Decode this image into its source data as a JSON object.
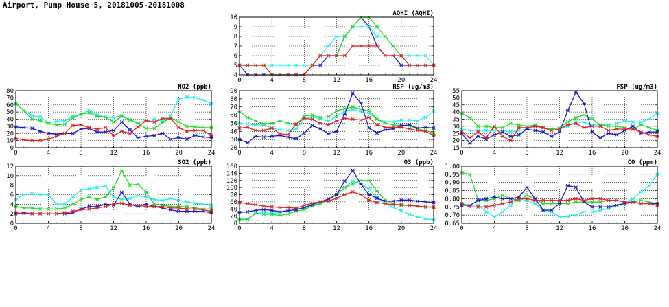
{
  "page": {
    "title": "Airport, Pump House 5, 20181005-20181008"
  },
  "colors": {
    "blue": "#1a1acc",
    "green": "#22dd22",
    "cyan": "#22eeee",
    "red": "#e52020"
  },
  "chart_data": [
    {
      "type": "line",
      "title": "AQHI (AQHI)",
      "xlim": [
        0,
        24
      ],
      "ylim": [
        4,
        10
      ],
      "xticks": [
        "0",
        "4",
        "8",
        "12",
        "16",
        "20",
        "24"
      ],
      "yticks": [
        "4",
        "5",
        "6",
        "7",
        "8",
        "9",
        "10"
      ],
      "grid": true,
      "x": [
        0,
        1,
        2,
        3,
        4,
        5,
        6,
        7,
        8,
        9,
        10,
        11,
        12,
        13,
        14,
        15,
        16,
        17,
        18,
        19,
        20,
        21,
        22,
        23,
        24
      ],
      "series": [
        {
          "color": "blue",
          "values": [
            5,
            4,
            4,
            4,
            4,
            4,
            4,
            4,
            4,
            5,
            5,
            6,
            6,
            8,
            9,
            10,
            9,
            7,
            6,
            6,
            5,
            5,
            5,
            5,
            5
          ]
        },
        {
          "color": "cyan",
          "values": [
            5,
            5,
            5,
            5,
            5,
            5,
            5,
            5,
            5,
            5,
            6,
            7,
            8,
            8,
            9,
            9,
            9,
            8,
            8,
            7,
            6,
            6,
            6,
            6,
            5
          ]
        },
        {
          "color": "green",
          "values": [
            5,
            5,
            5,
            5,
            4,
            4,
            4,
            4,
            4,
            5,
            6,
            6,
            6,
            8,
            9,
            10,
            10,
            9,
            8,
            7,
            6,
            5,
            5,
            5,
            5
          ]
        },
        {
          "color": "red",
          "values": [
            5,
            5,
            5,
            5,
            4,
            4,
            4,
            4,
            4,
            5,
            6,
            6,
            6,
            6,
            7,
            7,
            7,
            7,
            6,
            6,
            6,
            5,
            5,
            5,
            5
          ]
        }
      ]
    },
    {
      "type": "line",
      "title": "NO2 (ppb)",
      "xlim": [
        0,
        24
      ],
      "ylim": [
        0,
        80
      ],
      "xticks": [
        "0",
        "4",
        "8",
        "12",
        "16",
        "20",
        "24"
      ],
      "yticks": [
        "0",
        "10",
        "20",
        "30",
        "40",
        "50",
        "60",
        "70",
        "80"
      ],
      "grid": true,
      "x": [
        0,
        1,
        2,
        3,
        4,
        5,
        6,
        7,
        8,
        9,
        10,
        11,
        12,
        13,
        14,
        15,
        16,
        17,
        18,
        19,
        20,
        21,
        22,
        23,
        24
      ],
      "series": [
        {
          "color": "cyan",
          "values": [
            61,
            52,
            45,
            43,
            35,
            37,
            38,
            44,
            47,
            52,
            46,
            43,
            42,
            45,
            39,
            35,
            38,
            40,
            37,
            45,
            68,
            71,
            70,
            67,
            62
          ]
        },
        {
          "color": "green",
          "values": [
            62,
            52,
            40,
            38,
            34,
            32,
            33,
            42,
            47,
            49,
            44,
            43,
            36,
            44,
            39,
            34,
            27,
            27,
            35,
            42,
            36,
            30,
            29,
            28,
            28
          ]
        },
        {
          "color": "blue",
          "values": [
            29,
            28,
            27,
            23,
            20,
            19,
            20,
            20,
            26,
            27,
            22,
            22,
            24,
            36,
            25,
            14,
            16,
            17,
            20,
            12,
            14,
            12,
            17,
            15,
            14
          ]
        },
        {
          "color": "red",
          "values": [
            13,
            11,
            10,
            10,
            12,
            16,
            20,
            31,
            32,
            28,
            26,
            28,
            17,
            23,
            20,
            29,
            38,
            36,
            41,
            41,
            28,
            23,
            24,
            24,
            17
          ]
        }
      ]
    },
    {
      "type": "line",
      "title": "RSP (ug/m3)",
      "xlim": [
        0,
        24
      ],
      "ylim": [
        20,
        90
      ],
      "xticks": [
        "0",
        "4",
        "8",
        "12",
        "16",
        "20",
        "24"
      ],
      "yticks": [
        "20",
        "30",
        "40",
        "50",
        "60",
        "70",
        "80",
        "90"
      ],
      "grid": true,
      "x": [
        0,
        1,
        2,
        3,
        4,
        5,
        6,
        7,
        8,
        9,
        10,
        11,
        12,
        13,
        14,
        15,
        16,
        17,
        18,
        19,
        20,
        21,
        22,
        23,
        24
      ],
      "series": [
        {
          "color": "cyan",
          "values": [
            50,
            49,
            48,
            48,
            44,
            42,
            41,
            43,
            55,
            58,
            55,
            53,
            58,
            65,
            67,
            64,
            62,
            55,
            52,
            52,
            54,
            54,
            53,
            57,
            65
          ]
        },
        {
          "color": "green",
          "values": [
            64,
            57,
            53,
            49,
            50,
            53,
            50,
            48,
            59,
            60,
            57,
            58,
            65,
            68,
            70,
            67,
            65,
            55,
            50,
            48,
            47,
            47,
            43,
            41,
            38
          ]
        },
        {
          "color": "blue",
          "values": [
            30,
            26,
            34,
            33,
            34,
            35,
            33,
            31,
            38,
            47,
            43,
            37,
            40,
            61,
            87,
            75,
            44,
            38,
            42,
            43,
            47,
            48,
            44,
            45,
            44
          ]
        },
        {
          "color": "red",
          "values": [
            44,
            45,
            41,
            41,
            44,
            37,
            36,
            49,
            56,
            55,
            50,
            48,
            53,
            56,
            55,
            54,
            57,
            48,
            45,
            45,
            45,
            43,
            41,
            40,
            35
          ]
        }
      ]
    },
    {
      "type": "line",
      "title": "FSP (ug/m3)",
      "xlim": [
        0,
        24
      ],
      "ylim": [
        15,
        55
      ],
      "xticks": [
        "0",
        "4",
        "8",
        "12",
        "16",
        "20",
        "24"
      ],
      "yticks": [
        "15",
        "20",
        "25",
        "30",
        "35",
        "40",
        "45",
        "50",
        "55"
      ],
      "grid": true,
      "x": [
        0,
        1,
        2,
        3,
        4,
        5,
        6,
        7,
        8,
        9,
        10,
        11,
        12,
        13,
        14,
        15,
        16,
        17,
        18,
        19,
        20,
        21,
        22,
        23,
        24
      ],
      "series": [
        {
          "color": "cyan",
          "values": [
            28,
            27,
            27,
            27,
            27,
            27,
            26,
            27,
            28,
            30,
            29,
            28,
            28,
            30,
            33,
            33,
            31,
            31,
            31,
            32,
            34,
            33,
            33,
            35,
            39
          ]
        },
        {
          "color": "green",
          "values": [
            39,
            36,
            30,
            30,
            29,
            29,
            32,
            31,
            30,
            31,
            29,
            28,
            29,
            33,
            36,
            38,
            35,
            31,
            30,
            30,
            29,
            28,
            31,
            29,
            27
          ]
        },
        {
          "color": "blue",
          "values": [
            25,
            18,
            23,
            21,
            24,
            26,
            23,
            24,
            28,
            27,
            26,
            23,
            26,
            41,
            54,
            46,
            26,
            22,
            25,
            24,
            27,
            30,
            25,
            26,
            26
          ]
        },
        {
          "color": "red",
          "values": [
            26,
            22,
            26,
            22,
            30,
            23,
            20,
            29,
            29,
            30,
            29,
            27,
            28,
            31,
            32,
            29,
            30,
            30,
            27,
            28,
            28,
            28,
            26,
            24,
            23
          ]
        }
      ]
    },
    {
      "type": "line",
      "title": "SO2 (ppb)",
      "xlim": [
        0,
        24
      ],
      "ylim": [
        0,
        12
      ],
      "xticks": [
        "0",
        "4",
        "8",
        "12",
        "16",
        "20",
        "24"
      ],
      "yticks": [
        "0",
        "2",
        "4",
        "6",
        "8",
        "10",
        "12"
      ],
      "grid": true,
      "x": [
        0,
        1,
        2,
        3,
        4,
        5,
        6,
        7,
        8,
        9,
        10,
        11,
        12,
        13,
        14,
        15,
        16,
        17,
        18,
        19,
        20,
        21,
        22,
        23,
        24
      ],
      "series": [
        {
          "color": "cyan",
          "values": [
            5.0,
            6.0,
            6.2,
            6.0,
            6.0,
            4.0,
            4.0,
            5.5,
            7.0,
            7.2,
            7.5,
            7.8,
            5.5,
            5.0,
            5.2,
            5.8,
            5.5,
            5.0,
            4.8,
            5.2,
            4.8,
            4.5,
            4.2,
            4.0,
            3.8
          ]
        },
        {
          "color": "green",
          "values": [
            3.5,
            3.2,
            3.2,
            3.0,
            3.0,
            3.0,
            3.2,
            4.0,
            5.0,
            5.5,
            5.0,
            5.5,
            7.5,
            11.0,
            8.0,
            8.2,
            6.5,
            4.0,
            3.8,
            3.5,
            3.5,
            3.5,
            3.2,
            3.0,
            3.0
          ]
        },
        {
          "color": "blue",
          "values": [
            2.0,
            2.2,
            2.0,
            2.0,
            2.0,
            2.0,
            2.0,
            2.2,
            3.0,
            3.5,
            3.5,
            4.0,
            3.8,
            6.5,
            4.0,
            3.5,
            4.0,
            3.5,
            3.2,
            2.8,
            2.5,
            2.5,
            2.5,
            2.5,
            2.2
          ]
        },
        {
          "color": "red",
          "values": [
            2.2,
            2.0,
            2.0,
            2.0,
            2.0,
            2.0,
            2.2,
            2.5,
            2.8,
            3.0,
            3.2,
            3.5,
            4.0,
            4.2,
            3.8,
            3.8,
            3.5,
            3.5,
            3.5,
            3.2,
            3.2,
            3.0,
            3.0,
            2.8,
            2.5
          ]
        }
      ]
    },
    {
      "type": "line",
      "title": "O3 (ppb)",
      "xlim": [
        0,
        24
      ],
      "ylim": [
        0,
        160
      ],
      "xticks": [
        "0",
        "4",
        "8",
        "12",
        "16",
        "20",
        "24"
      ],
      "yticks": [
        "0",
        "20",
        "40",
        "60",
        "80",
        "100",
        "120",
        "140",
        "160"
      ],
      "grid": true,
      "x": [
        0,
        1,
        2,
        3,
        4,
        5,
        6,
        7,
        8,
        9,
        10,
        11,
        12,
        13,
        14,
        15,
        16,
        17,
        18,
        19,
        20,
        21,
        22,
        23,
        24
      ],
      "series": [
        {
          "color": "cyan",
          "values": [
            12,
            12,
            28,
            30,
            28,
            30,
            34,
            38,
            42,
            50,
            58,
            66,
            80,
            100,
            118,
            110,
            96,
            72,
            55,
            45,
            35,
            25,
            18,
            12,
            10
          ]
        },
        {
          "color": "green",
          "values": [
            10,
            10,
            28,
            25,
            25,
            22,
            26,
            34,
            38,
            48,
            55,
            66,
            80,
            100,
            110,
            120,
            120,
            90,
            65,
            55,
            50,
            50,
            48,
            45,
            45
          ]
        },
        {
          "color": "blue",
          "values": [
            30,
            32,
            36,
            38,
            36,
            32,
            35,
            38,
            44,
            52,
            60,
            68,
            80,
            118,
            148,
            110,
            80,
            70,
            62,
            62,
            65,
            65,
            62,
            60,
            58
          ]
        },
        {
          "color": "red",
          "values": [
            58,
            55,
            52,
            48,
            46,
            44,
            44,
            42,
            50,
            56,
            60,
            62,
            70,
            80,
            88,
            80,
            65,
            58,
            55,
            52,
            52,
            50,
            48,
            46,
            45
          ]
        }
      ]
    },
    {
      "type": "line",
      "title": "CO (ppm)",
      "xlim": [
        0,
        24
      ],
      "ylim": [
        0.65,
        1.0
      ],
      "xticks": [
        "0",
        "4",
        "8",
        "12",
        "16",
        "20",
        "24"
      ],
      "yticks": [
        "0.65",
        "0.70",
        "0.75",
        "0.80",
        "0.85",
        "0.90",
        "0.95",
        "1.00"
      ],
      "grid": true,
      "x": [
        0,
        1,
        2,
        3,
        4,
        5,
        6,
        7,
        8,
        9,
        10,
        11,
        12,
        13,
        14,
        15,
        16,
        17,
        18,
        19,
        20,
        21,
        22,
        23,
        24
      ],
      "series": [
        {
          "color": "cyan",
          "values": [
            0.77,
            0.76,
            0.76,
            0.72,
            0.69,
            0.72,
            0.76,
            0.8,
            0.79,
            0.77,
            0.73,
            0.72,
            0.69,
            0.69,
            0.7,
            0.72,
            0.72,
            0.73,
            0.74,
            0.76,
            0.78,
            0.8,
            0.84,
            0.88,
            0.95
          ]
        },
        {
          "color": "green",
          "values": [
            0.96,
            0.95,
            0.79,
            0.79,
            0.8,
            0.82,
            0.8,
            0.79,
            0.82,
            0.8,
            0.77,
            0.77,
            0.77,
            0.77,
            0.78,
            0.78,
            0.78,
            0.78,
            0.79,
            0.79,
            0.78,
            0.78,
            0.79,
            0.78,
            0.77
          ]
        },
        {
          "color": "blue",
          "values": [
            0.76,
            0.76,
            0.79,
            0.8,
            0.81,
            0.8,
            0.8,
            0.81,
            0.87,
            0.8,
            0.73,
            0.73,
            0.77,
            0.88,
            0.87,
            0.78,
            0.75,
            0.75,
            0.75,
            0.76,
            0.77,
            0.78,
            0.77,
            0.77,
            0.77
          ]
        },
        {
          "color": "red",
          "values": [
            0.77,
            0.75,
            0.75,
            0.75,
            0.76,
            0.77,
            0.78,
            0.8,
            0.8,
            0.79,
            0.79,
            0.79,
            0.79,
            0.79,
            0.8,
            0.79,
            0.8,
            0.8,
            0.79,
            0.79,
            0.78,
            0.78,
            0.77,
            0.77,
            0.76
          ]
        }
      ]
    }
  ]
}
